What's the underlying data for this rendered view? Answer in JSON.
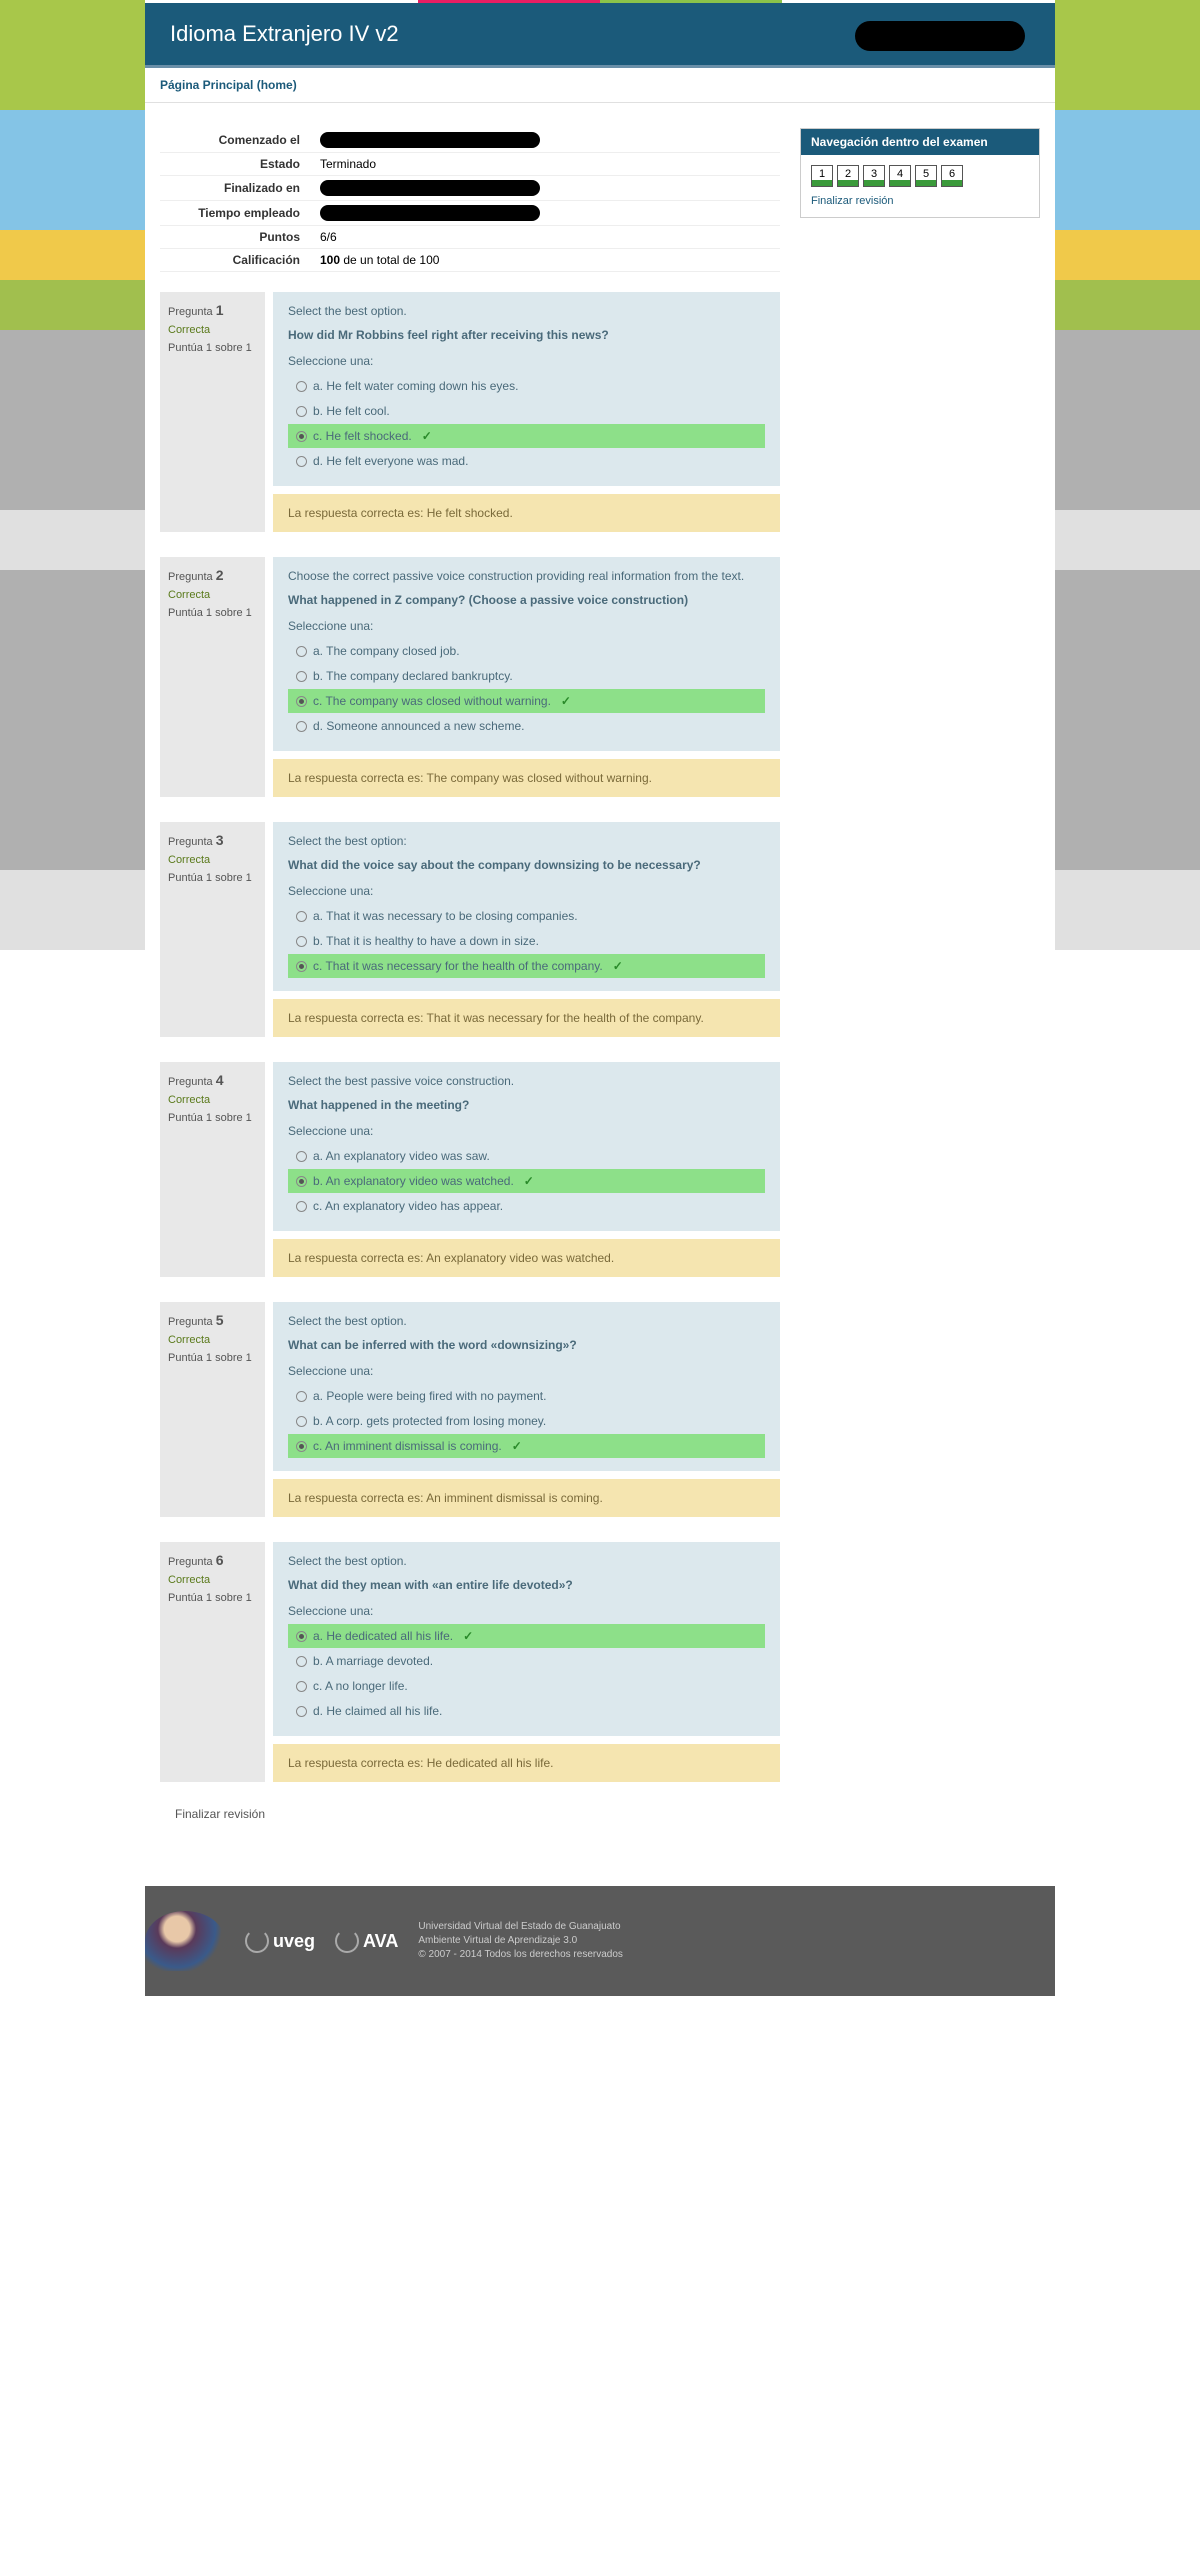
{
  "header": {
    "title": "Idioma Extranjero IV v2"
  },
  "breadcrumb": "Página Principal (home)",
  "summary": {
    "rows": [
      {
        "label": "Comenzado el",
        "value": "",
        "redacted": true
      },
      {
        "label": "Estado",
        "value": "Terminado",
        "redacted": false
      },
      {
        "label": "Finalizado en",
        "value": "",
        "redacted": true
      },
      {
        "label": "Tiempo empleado",
        "value": "",
        "redacted": true
      },
      {
        "label": "Puntos",
        "value": "6/6",
        "redacted": false
      },
      {
        "label": "Calificación",
        "value": "100 de un total de 100",
        "redacted": false
      }
    ]
  },
  "labels": {
    "pregunta": "Pregunta",
    "seleccione": "Seleccione una:",
    "respuesta_prefix": "La respuesta correcta es: ",
    "finish": "Finalizar revisión"
  },
  "questions": [
    {
      "num": "1",
      "state": "Correcta",
      "grade": "Puntúa 1 sobre 1",
      "instruction": "Select the best option.",
      "prompt": "How did Mr Robbins feel right after receiving this news?",
      "options": [
        {
          "letter": "a",
          "text": "He felt water coming down his eyes.",
          "selected": false,
          "correct": false
        },
        {
          "letter": "b",
          "text": "He felt cool.",
          "selected": false,
          "correct": false
        },
        {
          "letter": "c",
          "text": "He felt shocked.",
          "selected": true,
          "correct": true
        },
        {
          "letter": "d",
          "text": "He felt everyone was mad.",
          "selected": false,
          "correct": false
        }
      ],
      "correct_answer": "He felt shocked."
    },
    {
      "num": "2",
      "state": "Correcta",
      "grade": "Puntúa 1 sobre 1",
      "instruction": "Choose the correct passive voice construction providing real information from the text.",
      "prompt": "What happened in Z company? (Choose a passive voice construction)",
      "options": [
        {
          "letter": "a",
          "text": "The company closed job.",
          "selected": false,
          "correct": false
        },
        {
          "letter": "b",
          "text": "The company declared bankruptcy.",
          "selected": false,
          "correct": false
        },
        {
          "letter": "c",
          "text": "The company was closed without warning.",
          "selected": true,
          "correct": true
        },
        {
          "letter": "d",
          "text": "Someone announced a new scheme.",
          "selected": false,
          "correct": false
        }
      ],
      "correct_answer": "The company was closed without warning."
    },
    {
      "num": "3",
      "state": "Correcta",
      "grade": "Puntúa 1 sobre 1",
      "instruction": "Select the best option:",
      "prompt": "What did the voice say about the company downsizing to be necessary?",
      "options": [
        {
          "letter": "a",
          "text": "That it was necessary to be closing companies.",
          "selected": false,
          "correct": false
        },
        {
          "letter": "b",
          "text": "That it is healthy to have a down in size.",
          "selected": false,
          "correct": false
        },
        {
          "letter": "c",
          "text": "That it was necessary for the health of the company.",
          "selected": true,
          "correct": true
        }
      ],
      "correct_answer": "That it was necessary for the health of the company."
    },
    {
      "num": "4",
      "state": "Correcta",
      "grade": "Puntúa 1 sobre 1",
      "instruction": "Select the best passive voice construction.",
      "prompt": "What happened in the meeting?",
      "options": [
        {
          "letter": "a",
          "text": "An explanatory video was saw.",
          "selected": false,
          "correct": false
        },
        {
          "letter": "b",
          "text": "An explanatory video was watched.",
          "selected": true,
          "correct": true
        },
        {
          "letter": "c",
          "text": "An explanatory video has appear.",
          "selected": false,
          "correct": false
        }
      ],
      "correct_answer": "An explanatory video was watched."
    },
    {
      "num": "5",
      "state": "Correcta",
      "grade": "Puntúa 1 sobre 1",
      "instruction": "Select the best option.",
      "prompt": "What can be inferred with the word «downsizing»?",
      "options": [
        {
          "letter": "a",
          "text": "People were being fired with no payment.",
          "selected": false,
          "correct": false
        },
        {
          "letter": "b",
          "text": "A corp. gets protected from losing money.",
          "selected": false,
          "correct": false
        },
        {
          "letter": "c",
          "text": "An imminent dismissal is coming.",
          "selected": true,
          "correct": true
        }
      ],
      "correct_answer": "An imminent dismissal is coming."
    },
    {
      "num": "6",
      "state": "Correcta",
      "grade": "Puntúa 1 sobre 1",
      "instruction": "Select the best option.",
      "prompt": "What did they mean with «an entire life devoted»?",
      "options": [
        {
          "letter": "a",
          "text": "He dedicated all his life.",
          "selected": true,
          "correct": true
        },
        {
          "letter": "b",
          "text": "A marriage devoted.",
          "selected": false,
          "correct": false
        },
        {
          "letter": "c",
          "text": "A no longer life.",
          "selected": false,
          "correct": false
        },
        {
          "letter": "d",
          "text": "He claimed all his life.",
          "selected": false,
          "correct": false
        }
      ],
      "correct_answer": "He dedicated all his life."
    }
  ],
  "nav": {
    "title": "Navegación dentro del examen",
    "items": [
      "1",
      "2",
      "3",
      "4",
      "5",
      "6"
    ],
    "finish": "Finalizar revisión"
  },
  "footer": {
    "logo1": "uveg",
    "logo2": "AVA",
    "line1": "Universidad Virtual del Estado de Guanajuato",
    "line2": "Ambiente Virtual de Aprendizaje 3.0",
    "line3": "© 2007 - 2014 Todos los derechos reservados"
  }
}
